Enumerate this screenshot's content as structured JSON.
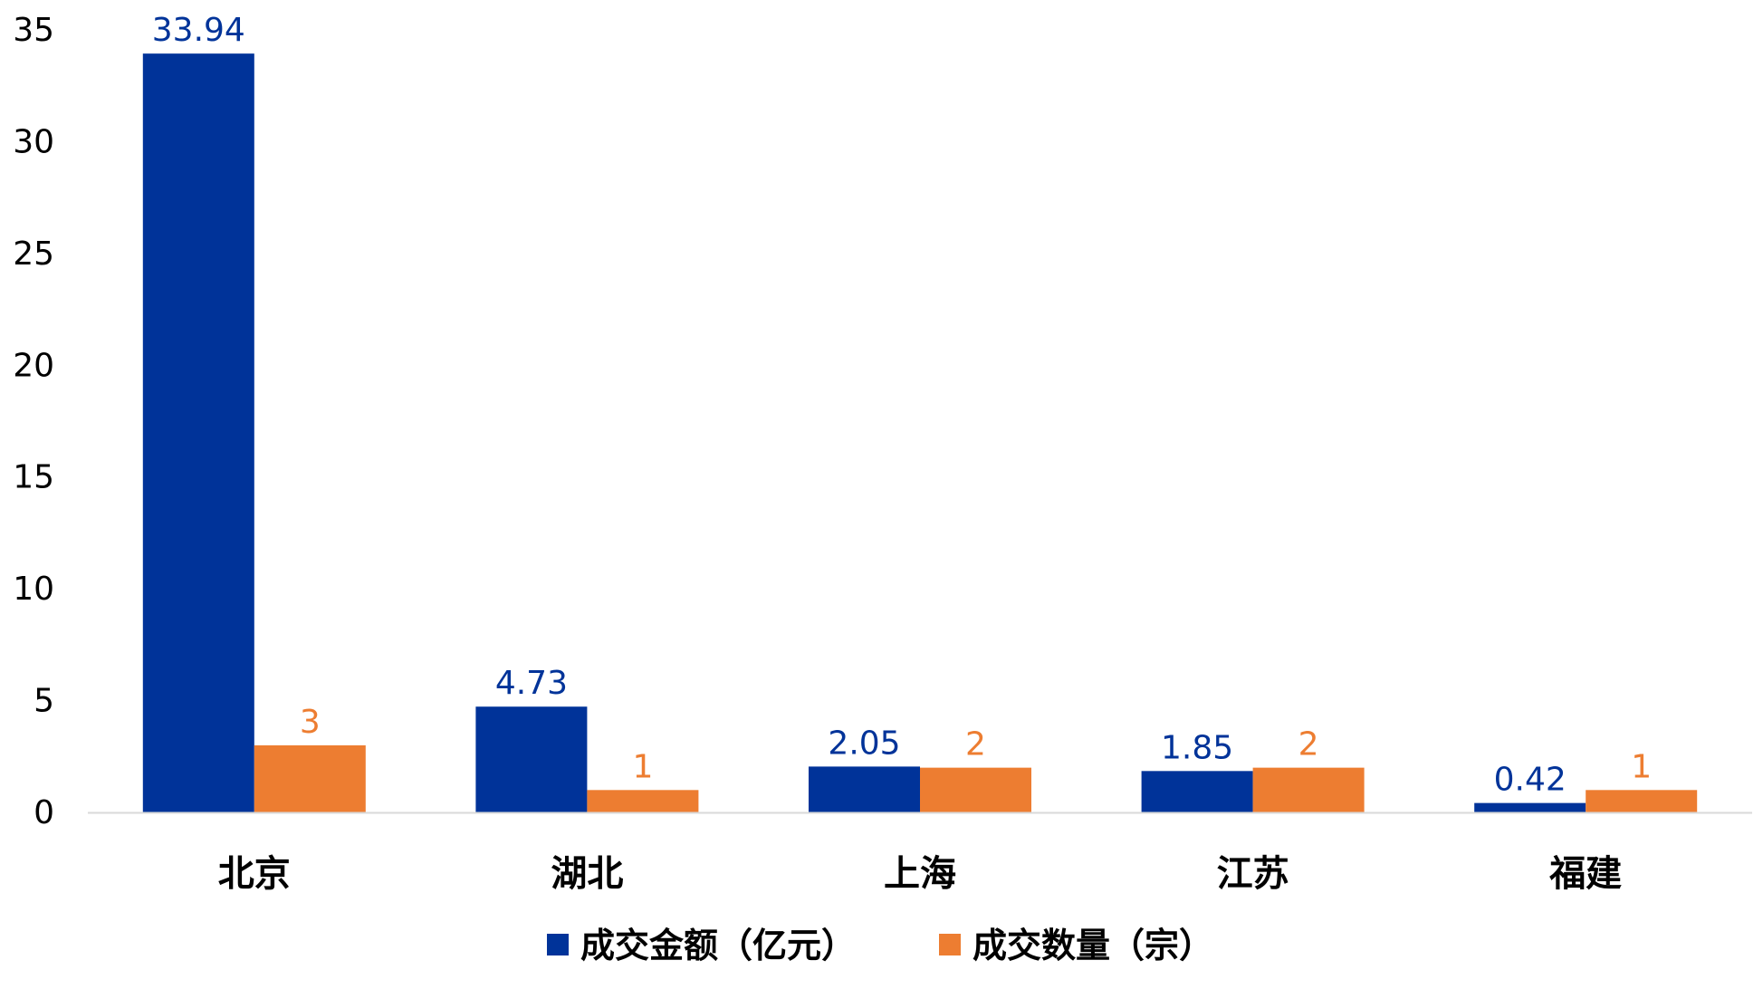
{
  "chart_data": {
    "type": "bar",
    "title": "",
    "xlabel": "",
    "ylabel": "",
    "ylim": [
      0,
      35
    ],
    "yticks": [
      0,
      5,
      10,
      15,
      20,
      25,
      30,
      35
    ],
    "grid": false,
    "legend_position": "bottom-center",
    "categories": [
      "北京",
      "湖北",
      "上海",
      "江苏",
      "福建"
    ],
    "series": [
      {
        "name": "成交金额（亿元）",
        "values": [
          33.94,
          4.73,
          2.05,
          1.85,
          0.42
        ],
        "labels": [
          "33.94",
          "4.73",
          "2.05",
          "1.85",
          "0.42"
        ],
        "color": "#003399"
      },
      {
        "name": "成交数量（宗）",
        "values": [
          3,
          1,
          2,
          2,
          1
        ],
        "labels": [
          "3",
          "1",
          "2",
          "2",
          "1"
        ],
        "color": "#ED7D31"
      }
    ]
  }
}
